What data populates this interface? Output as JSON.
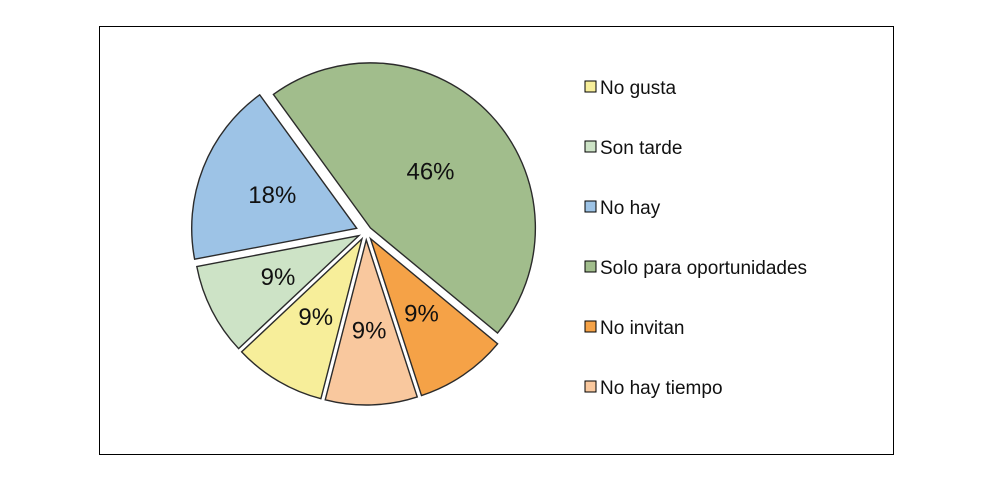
{
  "chart_data": {
    "type": "pie",
    "title": "",
    "categories": [
      "No gusta",
      "Son tarde",
      "No hay",
      "Solo para oportunidades",
      "No invitan",
      "No hay tiempo"
    ],
    "values": [
      9,
      9,
      18,
      46,
      9,
      9
    ],
    "labels": [
      "9%",
      "9%",
      "18%",
      "46%",
      "9%",
      "9%"
    ],
    "colors": [
      "#F7EE9A",
      "#CDE3C6",
      "#9DC3E6",
      "#A1BD8C",
      "#F5A247",
      "#F9C89E"
    ],
    "legend_position": "right",
    "exploded": true
  }
}
